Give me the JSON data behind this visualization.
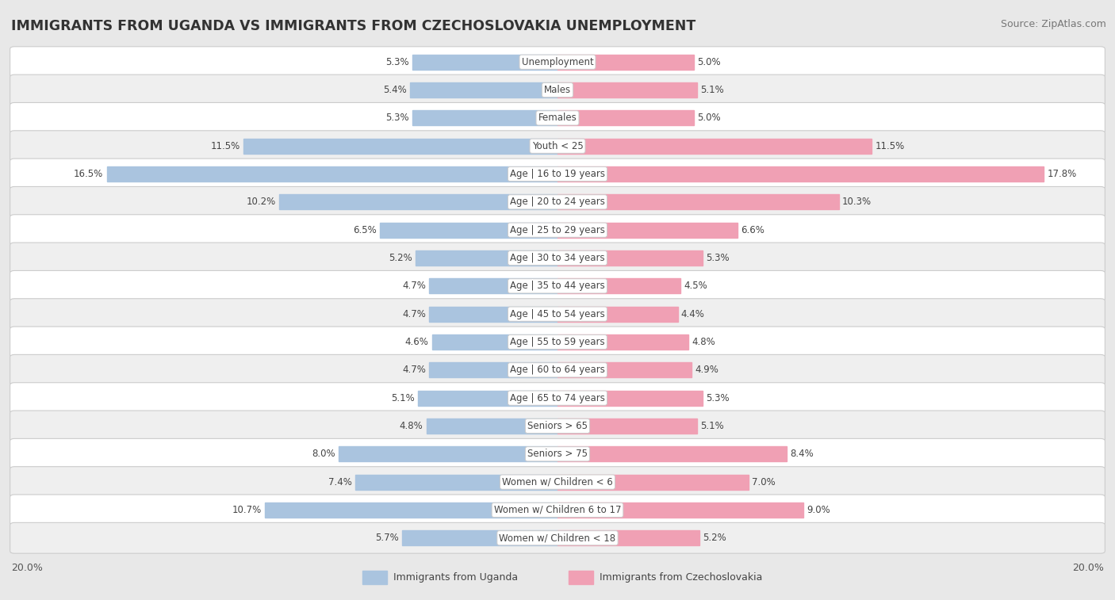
{
  "title": "IMMIGRANTS FROM UGANDA VS IMMIGRANTS FROM CZECHOSLOVAKIA UNEMPLOYMENT",
  "source": "Source: ZipAtlas.com",
  "categories": [
    "Unemployment",
    "Males",
    "Females",
    "Youth < 25",
    "Age | 16 to 19 years",
    "Age | 20 to 24 years",
    "Age | 25 to 29 years",
    "Age | 30 to 34 years",
    "Age | 35 to 44 years",
    "Age | 45 to 54 years",
    "Age | 55 to 59 years",
    "Age | 60 to 64 years",
    "Age | 65 to 74 years",
    "Seniors > 65",
    "Seniors > 75",
    "Women w/ Children < 6",
    "Women w/ Children 6 to 17",
    "Women w/ Children < 18"
  ],
  "uganda_values": [
    5.3,
    5.4,
    5.3,
    11.5,
    16.5,
    10.2,
    6.5,
    5.2,
    4.7,
    4.7,
    4.6,
    4.7,
    5.1,
    4.8,
    8.0,
    7.4,
    10.7,
    5.7
  ],
  "czech_values": [
    5.0,
    5.1,
    5.0,
    11.5,
    17.8,
    10.3,
    6.6,
    5.3,
    4.5,
    4.4,
    4.8,
    4.9,
    5.3,
    5.1,
    8.4,
    7.0,
    9.0,
    5.2
  ],
  "uganda_color": "#aac4df",
  "czech_color": "#f0a0b4",
  "axis_max": 20.0,
  "bg_color": "#e8e8e8",
  "row_color_even": "#ffffff",
  "row_color_odd": "#efefef",
  "legend_uganda": "Immigrants from Uganda",
  "legend_czech": "Immigrants from Czechoslovakia",
  "title_fontsize": 12.5,
  "source_fontsize": 9,
  "label_fontsize": 8.5,
  "cat_fontsize": 8.5,
  "axis_label_fontsize": 9
}
